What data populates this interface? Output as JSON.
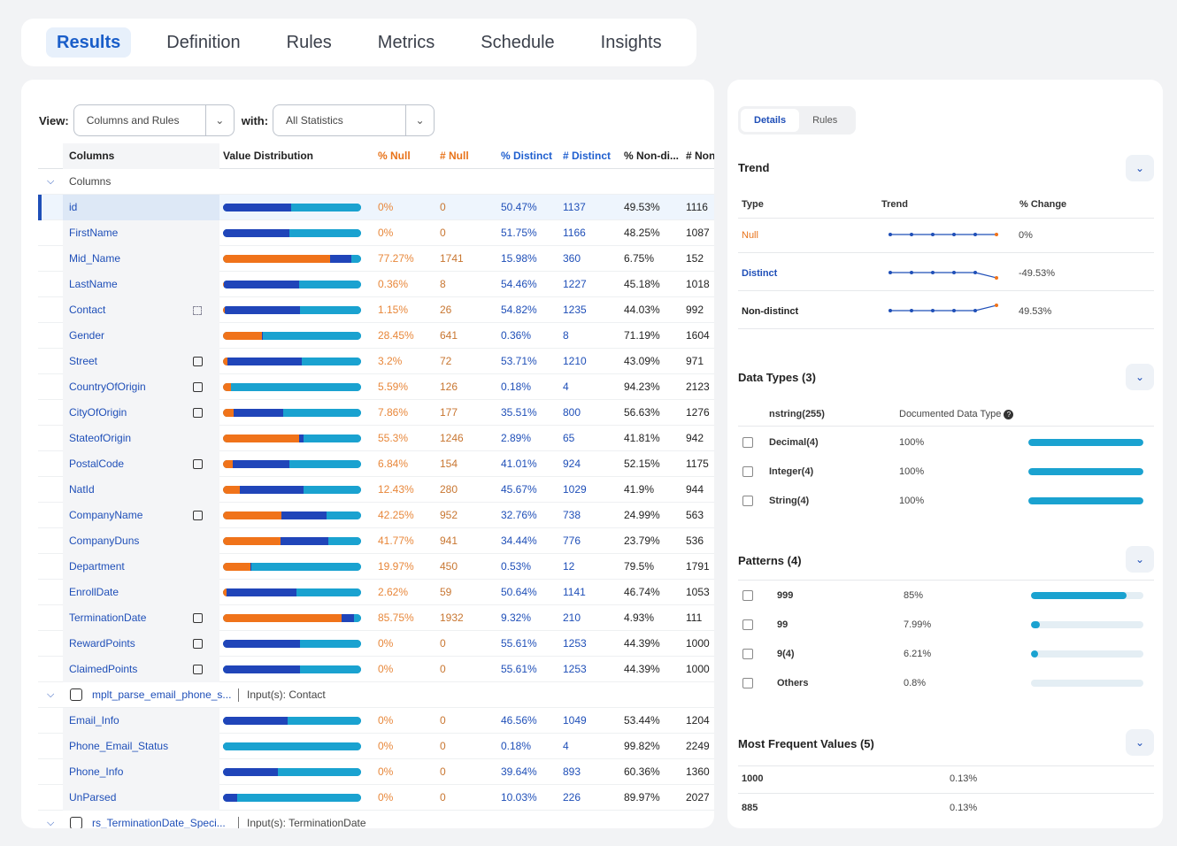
{
  "tabs": [
    {
      "label": "Results",
      "active": true
    },
    {
      "label": "Definition",
      "active": false
    },
    {
      "label": "Rules",
      "active": false
    },
    {
      "label": "Metrics",
      "active": false
    },
    {
      "label": "Schedule",
      "active": false
    },
    {
      "label": "Insights",
      "active": false
    }
  ],
  "view": {
    "view_label": "View:",
    "view_value": "Columns and Rules",
    "with_label": "with:",
    "with_value": "All Statistics"
  },
  "table": {
    "headers": {
      "columns": "Columns",
      "value_distribution": "Value Distribution",
      "pct_null": "% Null",
      "num_null": "# Null",
      "pct_distinct": "% Distinct",
      "num_distinct": "# Distinct",
      "pct_non_distinct": "% Non-di...",
      "num_non_distinct": "# Non"
    },
    "rows": [
      {
        "kind": "group",
        "name": "Columns"
      },
      {
        "kind": "col",
        "name": "id",
        "icon": "",
        "pn": "0%",
        "nn": "0",
        "pd": "50.47%",
        "nd": "1137",
        "pnd": "49.53%",
        "nnd": "1116",
        "null": 0,
        "nondistinct": 49.53,
        "selected": true
      },
      {
        "kind": "col",
        "name": "FirstName",
        "icon": "",
        "pn": "0%",
        "nn": "0",
        "pd": "51.75%",
        "nd": "1166",
        "pnd": "48.25%",
        "nnd": "1087",
        "null": 0,
        "nondistinct": 48.25
      },
      {
        "kind": "col",
        "name": "Mid_Name",
        "icon": "",
        "pn": "77.27%",
        "nn": "1741",
        "pd": "15.98%",
        "nd": "360",
        "pnd": "6.75%",
        "nnd": "152",
        "null": 77.27,
        "nondistinct": 15.98
      },
      {
        "kind": "col",
        "name": "LastName",
        "icon": "",
        "pn": "0.36%",
        "nn": "8",
        "pd": "54.46%",
        "nd": "1227",
        "pnd": "45.18%",
        "nnd": "1018",
        "null": 0.36,
        "nondistinct": 54.46
      },
      {
        "kind": "col",
        "name": "Contact",
        "icon": "qr-code-icon",
        "pn": "1.15%",
        "nn": "26",
        "pd": "54.82%",
        "nd": "1235",
        "pnd": "44.03%",
        "nnd": "992",
        "null": 1.15,
        "nondistinct": 54.82
      },
      {
        "kind": "col",
        "name": "Gender",
        "icon": "",
        "pn": "28.45%",
        "nn": "641",
        "pd": "0.36%",
        "nd": "8",
        "pnd": "71.19%",
        "nnd": "1604",
        "null": 28.45,
        "nondistinct": 0.36
      },
      {
        "kind": "col",
        "name": "Street",
        "icon": "rule-icon",
        "pn": "3.2%",
        "nn": "72",
        "pd": "53.71%",
        "nd": "1210",
        "pnd": "43.09%",
        "nnd": "971",
        "null": 3.2,
        "nondistinct": 53.71
      },
      {
        "kind": "col",
        "name": "CountryOfOrigin",
        "icon": "rule-icon",
        "pn": "5.59%",
        "nn": "126",
        "pd": "0.18%",
        "nd": "4",
        "pnd": "94.23%",
        "nnd": "2123",
        "null": 5.59,
        "nondistinct": 0.18
      },
      {
        "kind": "col",
        "name": "CityOfOrigin",
        "icon": "rule-icon",
        "pn": "7.86%",
        "nn": "177",
        "pd": "35.51%",
        "nd": "800",
        "pnd": "56.63%",
        "nnd": "1276",
        "null": 7.86,
        "nondistinct": 35.51
      },
      {
        "kind": "col",
        "name": "StateofOrigin",
        "icon": "",
        "pn": "55.3%",
        "nn": "1246",
        "pd": "2.89%",
        "nd": "65",
        "pnd": "41.81%",
        "nnd": "942",
        "null": 55.3,
        "nondistinct": 2.89
      },
      {
        "kind": "col",
        "name": "PostalCode",
        "icon": "rule-icon",
        "pn": "6.84%",
        "nn": "154",
        "pd": "41.01%",
        "nd": "924",
        "pnd": "52.15%",
        "nnd": "1175",
        "null": 6.84,
        "nondistinct": 41.01
      },
      {
        "kind": "col",
        "name": "NatId",
        "icon": "",
        "pn": "12.43%",
        "nn": "280",
        "pd": "45.67%",
        "nd": "1029",
        "pnd": "41.9%",
        "nnd": "944",
        "null": 12.43,
        "nondistinct": 45.67
      },
      {
        "kind": "col",
        "name": "CompanyName",
        "icon": "rule-icon",
        "pn": "42.25%",
        "nn": "952",
        "pd": "32.76%",
        "nd": "738",
        "pnd": "24.99%",
        "nnd": "563",
        "null": 42.25,
        "nondistinct": 32.76
      },
      {
        "kind": "col",
        "name": "CompanyDuns",
        "icon": "",
        "pn": "41.77%",
        "nn": "941",
        "pd": "34.44%",
        "nd": "776",
        "pnd": "23.79%",
        "nnd": "536",
        "null": 41.77,
        "nondistinct": 34.44
      },
      {
        "kind": "col",
        "name": "Department",
        "icon": "",
        "pn": "19.97%",
        "nn": "450",
        "pd": "0.53%",
        "nd": "12",
        "pnd": "79.5%",
        "nnd": "1791",
        "null": 19.97,
        "nondistinct": 0.53
      },
      {
        "kind": "col",
        "name": "EnrollDate",
        "icon": "",
        "pn": "2.62%",
        "nn": "59",
        "pd": "50.64%",
        "nd": "1141",
        "pnd": "46.74%",
        "nnd": "1053",
        "null": 2.62,
        "nondistinct": 50.64
      },
      {
        "kind": "col",
        "name": "TerminationDate",
        "icon": "rule-icon",
        "pn": "85.75%",
        "nn": "1932",
        "pd": "9.32%",
        "nd": "210",
        "pnd": "4.93%",
        "nnd": "111",
        "null": 85.75,
        "nondistinct": 9.32
      },
      {
        "kind": "col",
        "name": "RewardPoints",
        "icon": "rule-icon",
        "pn": "0%",
        "nn": "0",
        "pd": "55.61%",
        "nd": "1253",
        "pnd": "44.39%",
        "nnd": "1000",
        "null": 0,
        "nondistinct": 55.61
      },
      {
        "kind": "col",
        "name": "ClaimedPoints",
        "icon": "rule-icon",
        "pn": "0%",
        "nn": "0",
        "pd": "55.61%",
        "nd": "1253",
        "pnd": "44.39%",
        "nnd": "1000",
        "null": 0,
        "nondistinct": 55.61
      },
      {
        "kind": "rulegroup",
        "name": "mplt_parse_email_phone_s...",
        "input": "Input(s): Contact",
        "icon": "mapplet-icon"
      },
      {
        "kind": "col",
        "name": "Email_Info",
        "icon": "",
        "pn": "0%",
        "nn": "0",
        "pd": "46.56%",
        "nd": "1049",
        "pnd": "53.44%",
        "nnd": "1204",
        "null": 0,
        "nondistinct": 46.56
      },
      {
        "kind": "col",
        "name": "Phone_Email_Status",
        "icon": "",
        "pn": "0%",
        "nn": "0",
        "pd": "0.18%",
        "nd": "4",
        "pnd": "99.82%",
        "nnd": "2249",
        "null": 0,
        "nondistinct": 0.18
      },
      {
        "kind": "col",
        "name": "Phone_Info",
        "icon": "",
        "pn": "0%",
        "nn": "0",
        "pd": "39.64%",
        "nd": "893",
        "pnd": "60.36%",
        "nnd": "1360",
        "null": 0,
        "nondistinct": 39.64
      },
      {
        "kind": "col",
        "name": "UnParsed",
        "icon": "",
        "pn": "0%",
        "nn": "0",
        "pd": "10.03%",
        "nd": "226",
        "pnd": "89.97%",
        "nnd": "2027",
        "null": 0,
        "nondistinct": 10.03
      },
      {
        "kind": "rulegroup",
        "name": "rs_TerminationDate_Speci...",
        "input": "Input(s): TerminationDate",
        "icon": "rule-icon"
      }
    ]
  },
  "details": {
    "tabs": [
      "Details",
      "Rules"
    ],
    "trend": {
      "title": "Trend",
      "headers": [
        "Type",
        "Trend",
        "% Change"
      ],
      "rows": [
        {
          "type": "Null",
          "change": "0%",
          "color": "#e8731a",
          "points": [
            0,
            0,
            0,
            0,
            0,
            0
          ]
        },
        {
          "type": "Distinct",
          "change": "-49.53%",
          "color": "#1f4fb8",
          "points": [
            0,
            0,
            0,
            0,
            0,
            -49.53
          ]
        },
        {
          "type": "Non-distinct",
          "change": "49.53%",
          "color": "#222222",
          "points": [
            0,
            0,
            0,
            0,
            0,
            49.53
          ]
        }
      ]
    },
    "datatypes": {
      "title": "Data Types (3)",
      "inferred": "nstring(255)",
      "documented": "Documented Data Type",
      "rows": [
        {
          "name": "Decimal(4)",
          "pct": "100%",
          "value": 100
        },
        {
          "name": "Integer(4)",
          "pct": "100%",
          "value": 100
        },
        {
          "name": "String(4)",
          "pct": "100%",
          "value": 100
        }
      ]
    },
    "patterns": {
      "title": "Patterns (4)",
      "rows": [
        {
          "name": "999",
          "pct": "85%",
          "value": 85
        },
        {
          "name": "99",
          "pct": "7.99%",
          "value": 7.99
        },
        {
          "name": "9(4)",
          "pct": "6.21%",
          "value": 6.21
        },
        {
          "name": "Others",
          "pct": "0.8%",
          "value": 0.8
        }
      ]
    },
    "frequent": {
      "title": "Most Frequent Values (5)",
      "rows": [
        {
          "value": "1000",
          "pct": "0.13%"
        },
        {
          "value": "885",
          "pct": "0.13%"
        }
      ]
    }
  },
  "colors": {
    "null": "#f0731a",
    "nondistinct": "#2045b9",
    "distinct": "#1aa2d0",
    "accent": "#1f4fb8"
  }
}
